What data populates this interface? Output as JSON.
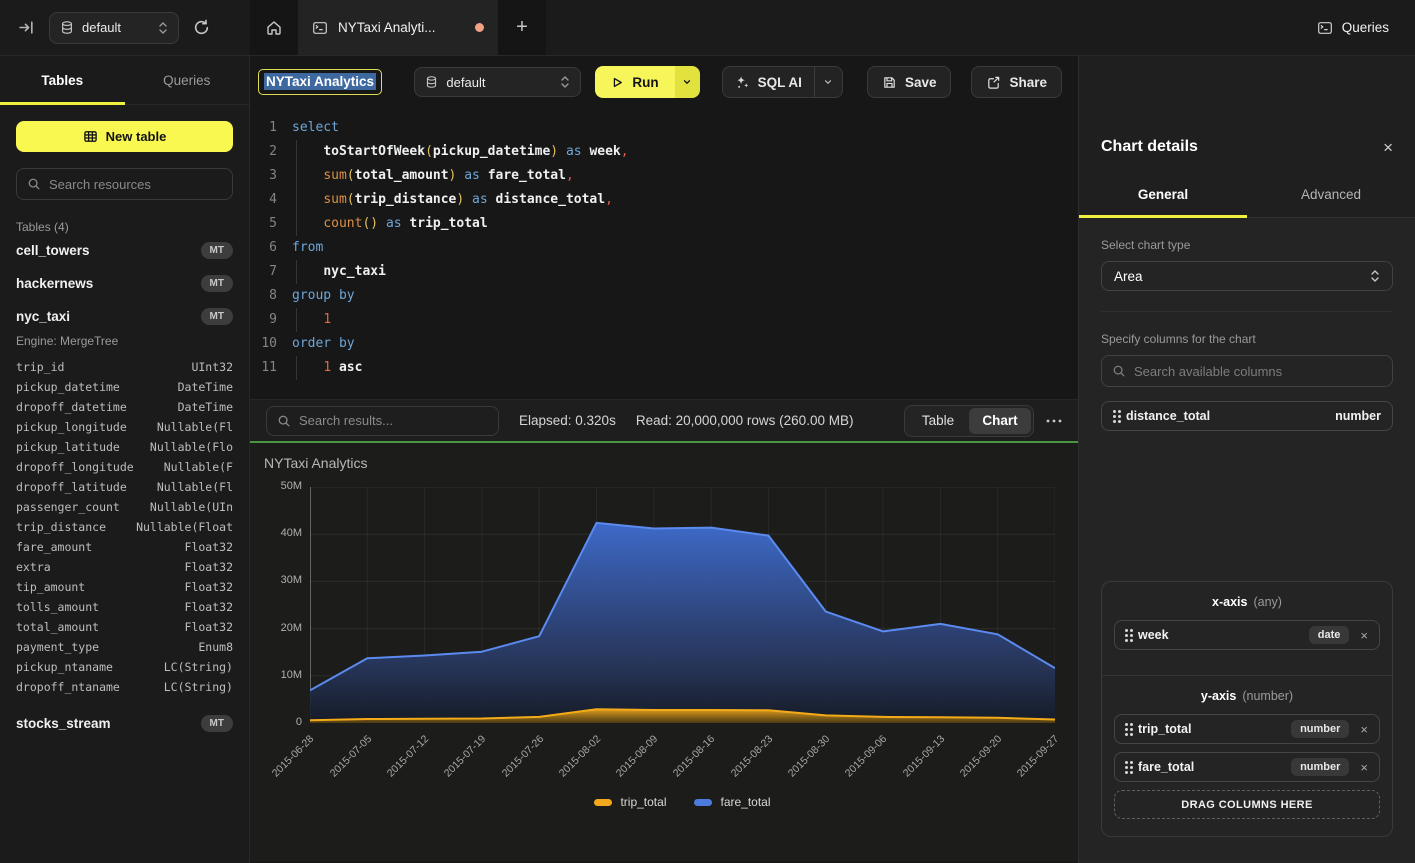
{
  "icons": {
    "close": "×",
    "more_hint": "ellipsis-menu",
    "new_tab": "+"
  },
  "topbar": {
    "database": "default",
    "tab_label": "NYTaxi Analyti...",
    "queries_label": "Queries"
  },
  "sidebar": {
    "tabs": [
      "Tables",
      "Queries"
    ],
    "active_tab": "Tables",
    "new_table_label": "New table",
    "search_placeholder": "Search resources",
    "section_label": "Tables (4)",
    "tables": [
      {
        "name": "cell_towers",
        "badge": "MT"
      },
      {
        "name": "hackernews",
        "badge": "MT"
      },
      {
        "name": "nyc_taxi",
        "badge": "MT",
        "engine_label": "Engine: MergeTree",
        "columns": [
          {
            "name": "trip_id",
            "type": "UInt32"
          },
          {
            "name": "pickup_datetime",
            "type": "DateTime"
          },
          {
            "name": "dropoff_datetime",
            "type": "DateTime"
          },
          {
            "name": "pickup_longitude",
            "type": "Nullable(Fl"
          },
          {
            "name": "pickup_latitude",
            "type": "Nullable(Flo"
          },
          {
            "name": "dropoff_longitude",
            "type": "Nullable(F"
          },
          {
            "name": "dropoff_latitude",
            "type": "Nullable(Fl"
          },
          {
            "name": "passenger_count",
            "type": "Nullable(UIn"
          },
          {
            "name": "trip_distance",
            "type": "Nullable(Float"
          },
          {
            "name": "fare_amount",
            "type": "Float32"
          },
          {
            "name": "extra",
            "type": "Float32"
          },
          {
            "name": "tip_amount",
            "type": "Float32"
          },
          {
            "name": "tolls_amount",
            "type": "Float32"
          },
          {
            "name": "total_amount",
            "type": "Float32"
          },
          {
            "name": "payment_type",
            "type": "Enum8"
          },
          {
            "name": "pickup_ntaname",
            "type": "LC(String)"
          },
          {
            "name": "dropoff_ntaname",
            "type": "LC(String)"
          }
        ]
      },
      {
        "name": "stocks_stream",
        "badge": "MT"
      }
    ]
  },
  "toolbar": {
    "title_value": "NYTaxi Analytics",
    "database": "default",
    "run_label": "Run",
    "sql_ai_label": "SQL AI",
    "save_label": "Save",
    "share_label": "Share"
  },
  "editor": {
    "lines": [
      {
        "n": "1",
        "g": false,
        "s": [
          [
            "kw",
            "select"
          ]
        ]
      },
      {
        "n": "2",
        "g": true,
        "s": [
          [
            "pl",
            "    "
          ],
          [
            "id",
            "toStartOfWeek"
          ],
          [
            "pa",
            "("
          ],
          [
            "id",
            "pickup_datetime"
          ],
          [
            "pa",
            ")"
          ],
          [
            "pl",
            " "
          ],
          [
            "kw",
            "as"
          ],
          [
            "pl",
            " "
          ],
          [
            "id",
            "week"
          ],
          [
            "cm",
            ","
          ]
        ]
      },
      {
        "n": "3",
        "g": true,
        "s": [
          [
            "pl",
            "    "
          ],
          [
            "fn",
            "sum"
          ],
          [
            "pa",
            "("
          ],
          [
            "id",
            "total_amount"
          ],
          [
            "pa",
            ")"
          ],
          [
            "pl",
            " "
          ],
          [
            "kw",
            "as"
          ],
          [
            "pl",
            " "
          ],
          [
            "id",
            "fare_total"
          ],
          [
            "cm",
            ","
          ]
        ]
      },
      {
        "n": "4",
        "g": true,
        "s": [
          [
            "pl",
            "    "
          ],
          [
            "fn",
            "sum"
          ],
          [
            "pa",
            "("
          ],
          [
            "id",
            "trip_distance"
          ],
          [
            "pa",
            ")"
          ],
          [
            "pl",
            " "
          ],
          [
            "kw",
            "as"
          ],
          [
            "pl",
            " "
          ],
          [
            "id",
            "distance_total"
          ],
          [
            "cm",
            ","
          ]
        ]
      },
      {
        "n": "5",
        "g": true,
        "s": [
          [
            "pl",
            "    "
          ],
          [
            "fn",
            "count"
          ],
          [
            "pa",
            "()"
          ],
          [
            "pl",
            " "
          ],
          [
            "kw",
            "as"
          ],
          [
            "pl",
            " "
          ],
          [
            "id",
            "trip_total"
          ]
        ]
      },
      {
        "n": "6",
        "g": false,
        "s": [
          [
            "kw",
            "from"
          ]
        ]
      },
      {
        "n": "7",
        "g": true,
        "s": [
          [
            "pl",
            "    "
          ],
          [
            "id",
            "nyc_taxi"
          ]
        ]
      },
      {
        "n": "8",
        "g": false,
        "s": [
          [
            "kw",
            "group by"
          ]
        ]
      },
      {
        "n": "9",
        "g": true,
        "s": [
          [
            "pl",
            "    "
          ],
          [
            "nu",
            "1"
          ]
        ]
      },
      {
        "n": "10",
        "g": false,
        "s": [
          [
            "kw",
            "order by"
          ]
        ]
      },
      {
        "n": "11",
        "g": true,
        "s": [
          [
            "pl",
            "    "
          ],
          [
            "nu",
            "1"
          ],
          [
            "pl",
            " "
          ],
          [
            "id",
            "asc"
          ]
        ]
      }
    ]
  },
  "results_bar": {
    "search_placeholder": "Search results...",
    "elapsed": "Elapsed: 0.320s",
    "read": "Read: 20,000,000 rows (260.00 MB)",
    "view_toggle": [
      "Table",
      "Chart"
    ],
    "active_view": "Chart"
  },
  "chart_data": {
    "type": "area",
    "title": "NYTaxi Analytics",
    "categories": [
      "2015-06-28",
      "2015-07-05",
      "2015-07-12",
      "2015-07-19",
      "2015-07-26",
      "2015-08-02",
      "2015-08-09",
      "2015-08-16",
      "2015-08-23",
      "2015-08-30",
      "2015-09-06",
      "2015-09-13",
      "2015-09-20",
      "2015-09-27"
    ],
    "series": [
      {
        "name": "trip_total",
        "color": "#f2a81d",
        "values": [
          600000,
          850000,
          900000,
          950000,
          1300000,
          2900000,
          2750000,
          2750000,
          2700000,
          1600000,
          1300000,
          1200000,
          1100000,
          750000
        ]
      },
      {
        "name": "fare_total",
        "color": "#4d7ce0",
        "values": [
          6900000,
          13700000,
          14300000,
          15100000,
          18400000,
          42400000,
          41200000,
          41400000,
          39700000,
          23600000,
          19400000,
          21000000,
          18800000,
          11600000
        ]
      }
    ],
    "ylim": [
      0,
      50000000
    ],
    "yticks": [
      0,
      10000000,
      20000000,
      30000000,
      40000000,
      50000000
    ],
    "ytick_labels": [
      "0",
      "10M",
      "20M",
      "30M",
      "40M",
      "50M"
    ],
    "grid": true,
    "legend_position": "bottom"
  },
  "details_panel": {
    "title": "Chart details",
    "tabs": [
      "General",
      "Advanced"
    ],
    "active_tab": "General",
    "chart_type_label": "Select chart type",
    "chart_type_value": "Area",
    "columns_label": "Specify columns for the chart",
    "search_placeholder": "Search available columns",
    "available_columns": [
      {
        "name": "distance_total",
        "type": "number"
      }
    ],
    "x_axis": {
      "label": "x-axis",
      "hint": "(any)",
      "items": [
        {
          "name": "week",
          "type": "date"
        }
      ]
    },
    "y_axis": {
      "label": "y-axis",
      "hint": "(number)",
      "items": [
        {
          "name": "trip_total",
          "type": "number"
        },
        {
          "name": "fare_total",
          "type": "number"
        }
      ]
    },
    "drop_label": "DRAG COLUMNS HERE"
  }
}
